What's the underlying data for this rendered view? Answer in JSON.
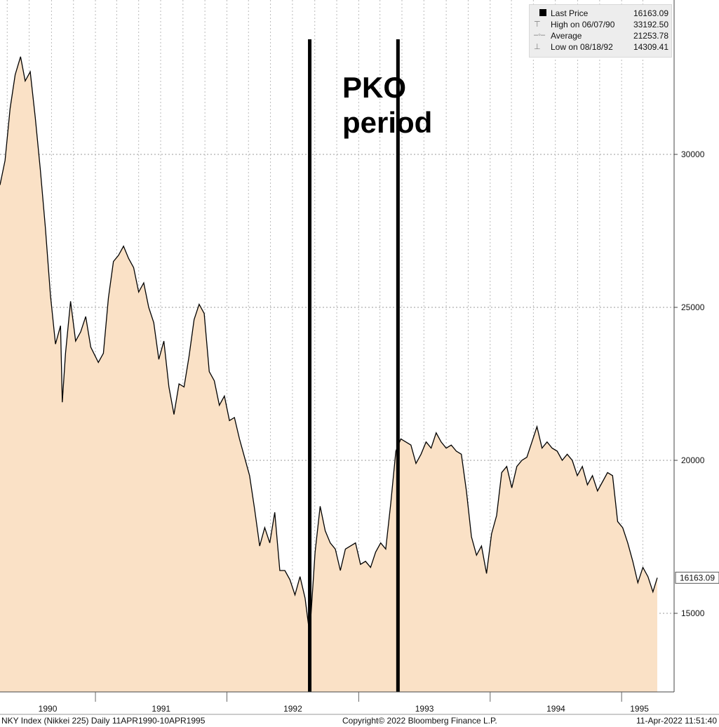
{
  "legend": {
    "items": [
      {
        "label": "Last Price",
        "value": "16163.09"
      },
      {
        "label": "High on 06/07/90",
        "value": "33192.50"
      },
      {
        "label": "Average",
        "value": "21253.78"
      },
      {
        "label": "Low on 08/18/92",
        "value": "14309.41"
      }
    ]
  },
  "annotation": {
    "line1": "PKO",
    "line2": "period"
  },
  "footer": {
    "left": "NKY Index (Nikkei 225)  Daily 11APR1990-10APR1995",
    "center": "Copyright© 2022 Bloomberg Finance L.P.",
    "right": "11-Apr-2022 11:51:40"
  },
  "colors": {
    "fill": "#fae1c6",
    "line": "#000000",
    "grid": "#999999",
    "background": "#ffffff"
  },
  "chart_data": {
    "type": "area",
    "ylim": [
      12500,
      35000
    ],
    "yticks": [
      15000,
      20000,
      25000,
      30000
    ],
    "ytick_labels": [
      "15000",
      "20000",
      "25000",
      "30000"
    ],
    "year_labels": [
      "1990",
      "1991",
      "1992",
      "1993",
      "1994",
      "1995"
    ],
    "last_value_label": "16163.09",
    "last_value": 16163.09,
    "vertical_markers": [
      "1992-08-18",
      "1993-04-20"
    ],
    "x": [
      "1990-04-11",
      "1990-04-25",
      "1990-05-09",
      "1990-05-23",
      "1990-06-07",
      "1990-06-20",
      "1990-07-04",
      "1990-07-18",
      "1990-08-01",
      "1990-08-15",
      "1990-08-29",
      "1990-09-12",
      "1990-09-26",
      "1990-10-01",
      "1990-10-10",
      "1990-10-24",
      "1990-11-07",
      "1990-11-21",
      "1990-12-05",
      "1990-12-19",
      "1991-01-09",
      "1991-01-23",
      "1991-02-06",
      "1991-02-20",
      "1991-03-06",
      "1991-03-20",
      "1991-04-03",
      "1991-04-17",
      "1991-05-01",
      "1991-05-15",
      "1991-05-29",
      "1991-06-12",
      "1991-06-26",
      "1991-07-10",
      "1991-07-24",
      "1991-08-07",
      "1991-08-21",
      "1991-09-04",
      "1991-09-18",
      "1991-10-02",
      "1991-10-16",
      "1991-10-30",
      "1991-11-13",
      "1991-11-27",
      "1991-12-11",
      "1991-12-25",
      "1992-01-08",
      "1992-01-22",
      "1992-02-05",
      "1992-02-19",
      "1992-03-04",
      "1992-03-18",
      "1992-04-01",
      "1992-04-15",
      "1992-04-29",
      "1992-05-13",
      "1992-05-27",
      "1992-06-10",
      "1992-06-24",
      "1992-07-08",
      "1992-07-22",
      "1992-08-05",
      "1992-08-18",
      "1992-09-02",
      "1992-09-16",
      "1992-09-30",
      "1992-10-14",
      "1992-10-28",
      "1992-11-11",
      "1992-11-25",
      "1992-12-09",
      "1992-12-23",
      "1993-01-06",
      "1993-01-20",
      "1993-02-03",
      "1993-02-17",
      "1993-03-03",
      "1993-03-17",
      "1993-03-31",
      "1993-04-14",
      "1993-04-28",
      "1993-05-12",
      "1993-05-26",
      "1993-06-09",
      "1993-06-23",
      "1993-07-07",
      "1993-07-21",
      "1993-08-04",
      "1993-08-18",
      "1993-09-01",
      "1993-09-15",
      "1993-09-29",
      "1993-10-13",
      "1993-10-27",
      "1993-11-10",
      "1993-11-24",
      "1993-12-08",
      "1993-12-22",
      "1994-01-05",
      "1994-01-19",
      "1994-02-02",
      "1994-02-16",
      "1994-03-02",
      "1994-03-16",
      "1994-03-30",
      "1994-04-13",
      "1994-04-27",
      "1994-05-11",
      "1994-05-25",
      "1994-06-08",
      "1994-06-22",
      "1994-07-06",
      "1994-07-20",
      "1994-08-03",
      "1994-08-17",
      "1994-08-31",
      "1994-09-14",
      "1994-09-28",
      "1994-10-12",
      "1994-10-26",
      "1994-11-09",
      "1994-11-23",
      "1994-12-07",
      "1994-12-21",
      "1995-01-04",
      "1995-01-18",
      "1995-02-01",
      "1995-02-15",
      "1995-03-01",
      "1995-03-15",
      "1995-03-29",
      "1995-04-10"
    ],
    "values": [
      29000,
      29800,
      31500,
      32600,
      33192.5,
      32400,
      32700,
      31200,
      29500,
      27600,
      25400,
      23800,
      24400,
      21900,
      23500,
      25200,
      23900,
      24200,
      24700,
      23700,
      23200,
      23500,
      25300,
      26500,
      26700,
      27000,
      26600,
      26300,
      25500,
      25800,
      25000,
      24500,
      23300,
      23900,
      22400,
      21500,
      22500,
      22400,
      23400,
      24600,
      25100,
      24800,
      22900,
      22600,
      21800,
      22100,
      21300,
      21400,
      20700,
      20100,
      19500,
      18400,
      17200,
      17800,
      17300,
      18300,
      16400,
      16400,
      16100,
      15600,
      16200,
      15500,
      14309.41,
      17000,
      18500,
      17700,
      17300,
      17100,
      16400,
      17100,
      17200,
      17300,
      16600,
      16700,
      16500,
      17000,
      17300,
      17100,
      18600,
      20300,
      20700,
      20600,
      20500,
      19900,
      20200,
      20600,
      20400,
      20900,
      20600,
      20400,
      20500,
      20300,
      20200,
      19000,
      17500,
      16900,
      17200,
      16300,
      17600,
      18200,
      19600,
      19800,
      19100,
      19800,
      20000,
      20100,
      20600,
      21100,
      20400,
      20600,
      20400,
      20300,
      20000,
      20200,
      20000,
      19500,
      19800,
      19200,
      19500,
      19000,
      19300,
      19600,
      19500,
      18000,
      17800,
      17300,
      16700,
      16000,
      16500,
      16200,
      15700,
      16163.09
    ]
  }
}
